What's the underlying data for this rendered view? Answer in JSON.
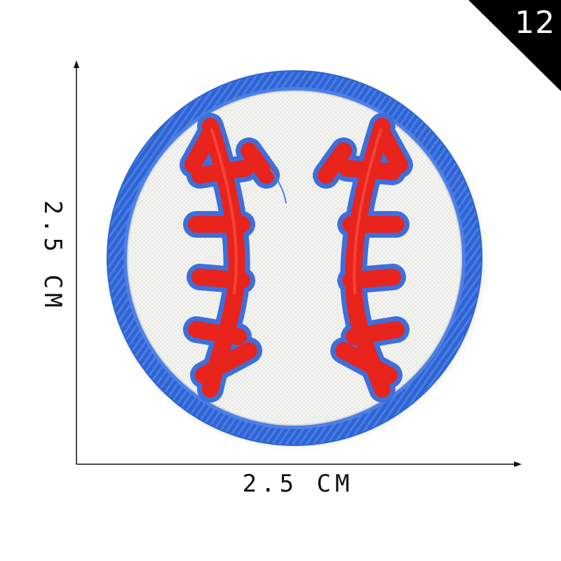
{
  "badge": {
    "number": "12",
    "background_color": "#000000",
    "text_color": "#ffffff"
  },
  "dimensions": {
    "width_label": "2.5 CM",
    "height_label": "2.5 CM"
  },
  "patch": {
    "subject": "baseball embroidered patch",
    "border_color": "#2f66d6",
    "fabric_color": "#f3f3f3",
    "stitch_color": "#e8241c"
  }
}
